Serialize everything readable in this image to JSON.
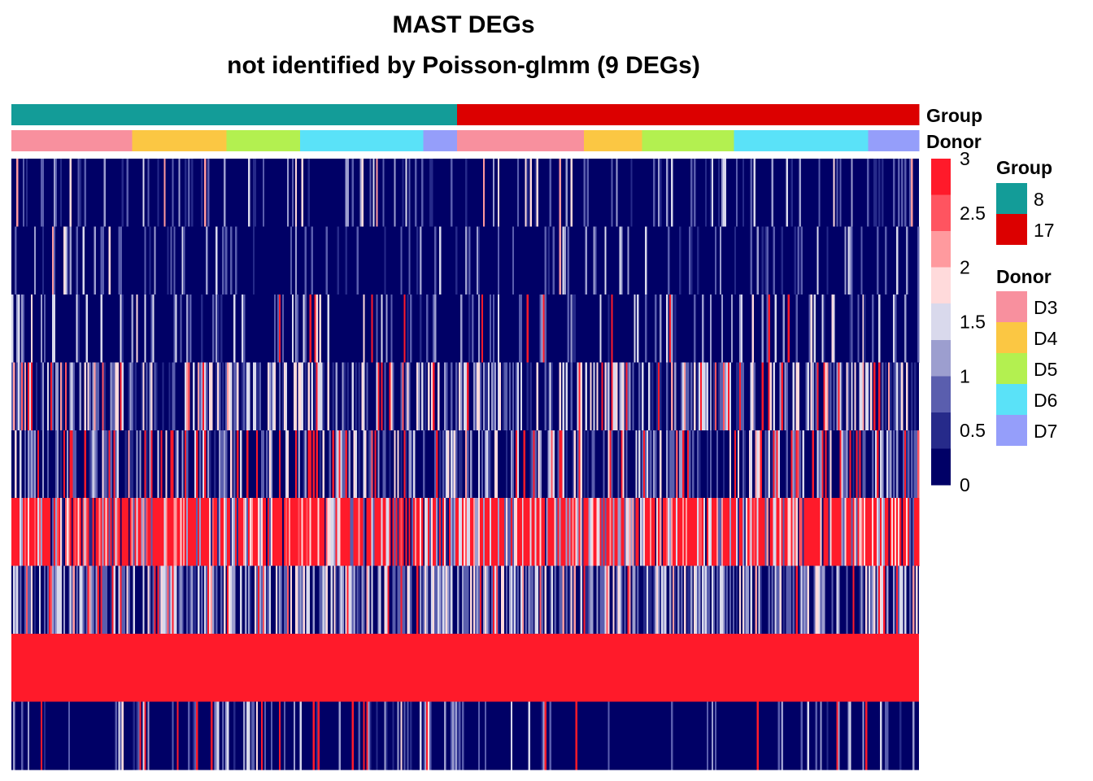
{
  "chart_data": {
    "type": "heatmap",
    "title": "MAST DEGs",
    "subtitle": "not identified by Poisson-glmm (9 DEGs)",
    "n_genes": 9,
    "annotations": [
      {
        "name": "Group",
        "levels": [
          {
            "label": "8",
            "color": "#139C98",
            "fraction": 0.491
          },
          {
            "label": "17",
            "color": "#DC0000",
            "fraction": 0.509
          }
        ]
      },
      {
        "name": "Donor",
        "segments": [
          {
            "label": "D3",
            "fraction": 0.133
          },
          {
            "label": "D4",
            "fraction": 0.104
          },
          {
            "label": "D5",
            "fraction": 0.081
          },
          {
            "label": "D6",
            "fraction": 0.136
          },
          {
            "label": "D7",
            "fraction": 0.037
          },
          {
            "label": "D3",
            "fraction": 0.14
          },
          {
            "label": "D4",
            "fraction": 0.064
          },
          {
            "label": "D5",
            "fraction": 0.101
          },
          {
            "label": "D6",
            "fraction": 0.148
          },
          {
            "label": "D7",
            "fraction": 0.056
          }
        ],
        "levels": [
          {
            "label": "D3",
            "color": "#F8909E"
          },
          {
            "label": "D4",
            "color": "#FBC743"
          },
          {
            "label": "D5",
            "color": "#B3F050"
          },
          {
            "label": "D6",
            "color": "#5AE2F8"
          },
          {
            "label": "D7",
            "color": "#959EFA"
          }
        ]
      }
    ],
    "color_scale": {
      "min": 0,
      "max": 3,
      "ticks": [
        "0",
        "0.5",
        "1",
        "1.5",
        "2",
        "2.5",
        "3"
      ],
      "colors": [
        "#000066",
        "#262A8A",
        "#5A5EAE",
        "#9C9ECF",
        "#D9D9EC",
        "#FFDADB",
        "#FF9A9E",
        "#FF5460",
        "#FF1A2A"
      ]
    },
    "rows": [
      {
        "gene_index": 1,
        "typical": "mostly 0, sparse low values (~0.5-1), rare 2"
      },
      {
        "gene_index": 2,
        "typical": "mostly 0, sparse low values (~0.5-1), rare 2"
      },
      {
        "gene_index": 3,
        "typical": "mostly 0, sparse 1-2, rare 3"
      },
      {
        "gene_index": 4,
        "typical": "mixed 0-1.5, frequent 2, occasional 3"
      },
      {
        "gene_index": 5,
        "typical": "mixed 0-1.5, occasional 2-3"
      },
      {
        "gene_index": 6,
        "typical": "high, mostly 2.5-3 with some 0-1"
      },
      {
        "gene_index": 7,
        "typical": "mixed 0-2, frequent white/light values"
      },
      {
        "gene_index": 8,
        "typical": "3 (saturated) across all cells"
      },
      {
        "gene_index": 9,
        "typical": "mostly 0, sparse 1 and 3 near cluster centre"
      }
    ]
  },
  "legend": {
    "group_title": "Group",
    "donor_title": "Donor"
  }
}
